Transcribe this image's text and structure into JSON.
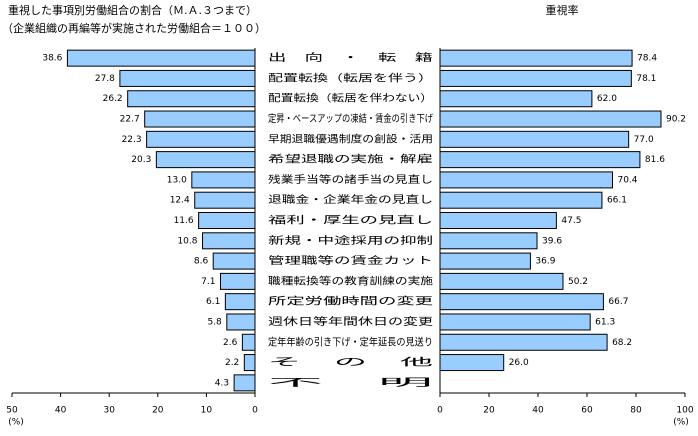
{
  "chart_data": [
    {
      "type": "bar",
      "orientation": "horizontal",
      "title": "重視した事項別労働組合の割合（Ｍ.Ａ.３つまで）",
      "subtitle": "（企業組織の再編等が実施された労働組合＝１００）",
      "categories": [
        "出　向　・　転　籍",
        "配置転換（転居を伴う）",
        "配置転換（転居を伴わない）",
        "定昇・ベースアップの凍結・賃金の引き下げ",
        "早期退職優遇制度の創設・活用",
        "希望退職の実施・解雇",
        "残業手当等の諸手当の見直し",
        "退職金・企業年金の見直し",
        "福利・厚生の見直し",
        "新規・中途採用の抑制",
        "管理職等の賃金カット",
        "職種転換等の教育訓練の実施",
        "所定労働時間の変更",
        "週休日等年間休日の変更",
        "定年年齢の引き下げ・定年延長の見送り",
        "そ　の　他",
        "不　明"
      ],
      "values": [
        38.6,
        27.8,
        26.2,
        22.7,
        22.3,
        20.3,
        13.0,
        12.4,
        11.6,
        10.8,
        8.6,
        7.1,
        6.1,
        5.8,
        2.6,
        2.2,
        4.3
      ],
      "value_labels": [
        "38.6",
        "27.8",
        "26.2",
        "22.7",
        "22.3",
        "20.3",
        "13.0",
        "12.4",
        "11.6",
        "10.8",
        "8.6",
        "7.1",
        "6.1",
        "5.8",
        "2.6",
        "2.2",
        "4.3"
      ],
      "color": "#99ccff",
      "xlim": [
        50,
        0
      ],
      "xticks": [
        50,
        40,
        30,
        20,
        10,
        0
      ],
      "x_unit": "(%)"
    },
    {
      "type": "bar",
      "orientation": "horizontal",
      "title": "重視率",
      "values": [
        78.4,
        78.1,
        62.0,
        90.2,
        77.0,
        81.6,
        70.4,
        66.1,
        47.5,
        39.6,
        36.9,
        50.2,
        66.7,
        61.3,
        68.2,
        26.0,
        null
      ],
      "value_labels": [
        "78.4",
        "78.1",
        "62.0",
        "90.2",
        "77.0",
        "81.6",
        "70.4",
        "66.1",
        "47.5",
        "39.6",
        "36.9",
        "50.2",
        "66.7",
        "61.3",
        "68.2",
        "26.0",
        null
      ],
      "color": "#99ccff",
      "xlim": [
        0,
        100
      ],
      "xticks": [
        0,
        20,
        40,
        60,
        80,
        100
      ],
      "x_unit": "(%)"
    }
  ]
}
